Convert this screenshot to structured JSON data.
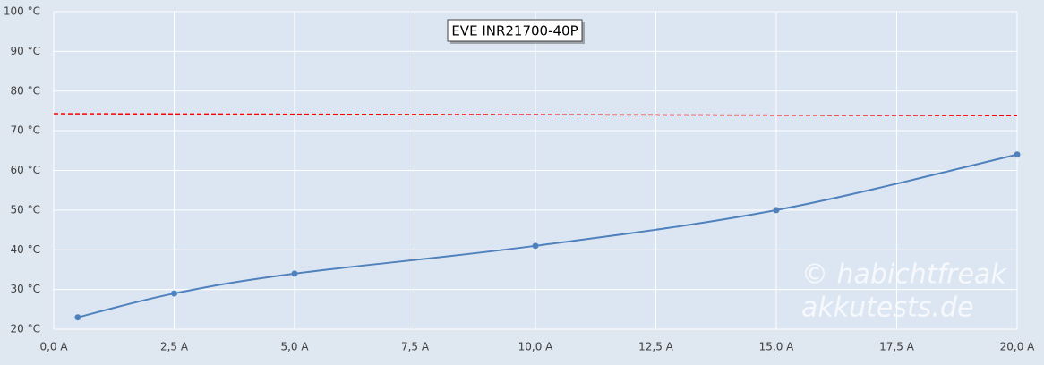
{
  "chart_data": {
    "type": "line",
    "title": "EVE INR21700-40P",
    "watermark": [
      "© habichtfreak",
      "akkutests.de"
    ],
    "series": [
      {
        "x": [
          0.5,
          2.5,
          5,
          10,
          15,
          20
        ],
        "values": [
          23,
          29,
          34,
          41,
          50,
          64
        ],
        "color": "#4f81bd",
        "smooth": true,
        "markers": true,
        "dashed": false
      },
      {
        "x": [
          0,
          20
        ],
        "values": [
          74.3,
          73.8
        ],
        "color": "#ff0000",
        "smooth": false,
        "markers": false,
        "dashed": true
      }
    ],
    "xlim": [
      0,
      20
    ],
    "xticks": [
      {
        "value": 0,
        "label": "0,0 A"
      },
      {
        "value": 2.5,
        "label": "2,5 A"
      },
      {
        "value": 5,
        "label": "5,0 A"
      },
      {
        "value": 7.5,
        "label": "7,5 A"
      },
      {
        "value": 10,
        "label": "10,0 A"
      },
      {
        "value": 12.5,
        "label": "12,5 A"
      },
      {
        "value": 15,
        "label": "15,0 A"
      },
      {
        "value": 17.5,
        "label": "17,5 A"
      },
      {
        "value": 20,
        "label": "20,0 A"
      }
    ],
    "ylim": [
      20,
      100
    ],
    "yticks": [
      {
        "value": 20,
        "label": "20 °C"
      },
      {
        "value": 30,
        "label": "30 °C"
      },
      {
        "value": 40,
        "label": "40 °C"
      },
      {
        "value": 50,
        "label": "50 °C"
      },
      {
        "value": 60,
        "label": "60 °C"
      },
      {
        "value": 70,
        "label": "70 °C"
      },
      {
        "value": 80,
        "label": "80 °C"
      },
      {
        "value": 90,
        "label": "90 °C"
      },
      {
        "value": 100,
        "label": "100 °C"
      }
    ],
    "grid": true
  }
}
